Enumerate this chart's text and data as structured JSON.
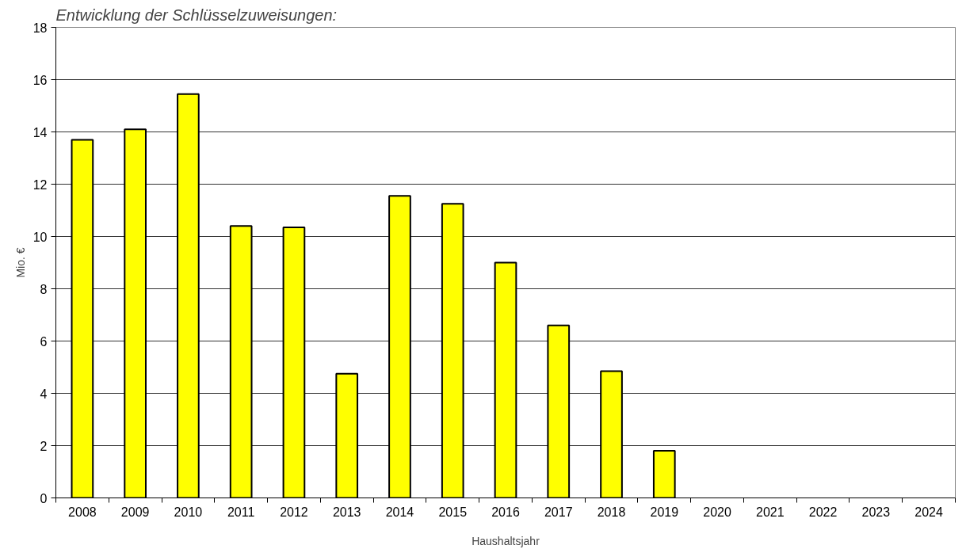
{
  "chart_data": {
    "type": "bar",
    "title": "Entwicklung der Schlüsselzuweisungen:",
    "xlabel": "Haushaltsjahr",
    "ylabel": "Mio. €",
    "categories": [
      "2008",
      "2009",
      "2010",
      "2011",
      "2012",
      "2013",
      "2014",
      "2015",
      "2016",
      "2017",
      "2018",
      "2019",
      "2020",
      "2021",
      "2022",
      "2023",
      "2024"
    ],
    "values": [
      13.7,
      14.1,
      15.45,
      10.4,
      10.35,
      4.75,
      11.55,
      11.25,
      9.0,
      6.6,
      4.85,
      1.8,
      null,
      null,
      null,
      null,
      null
    ],
    "color": "#ffff00",
    "ylim": [
      0,
      18
    ],
    "yticks": [
      0,
      2,
      4,
      6,
      8,
      10,
      12,
      14,
      16,
      18
    ],
    "grid": "y"
  }
}
